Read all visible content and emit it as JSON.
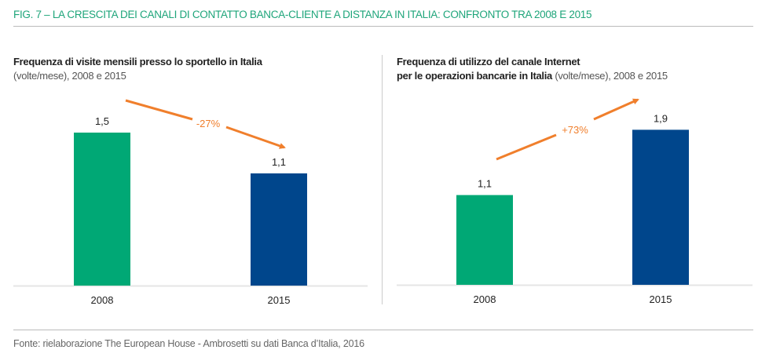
{
  "title": "FIG. 7 – LA CRESCITA DEI CANALI DI CONTATTO BANCA-CLIENTE A DISTANZA IN ITALIA: CONFRONTO TRA 2008 E 2015",
  "footer": "Fonte: rielaborazione The European House - Ambrosetti su dati Banca d’Italia, 2016",
  "colors": {
    "title": "#1ea57a",
    "bar_2008": "#00a875",
    "bar_2015": "#00468c",
    "arrow": "#f07f2c"
  },
  "chart_data": [
    {
      "type": "bar",
      "title_bold": "Frequenza di visite mensili presso lo sportello in Italia",
      "title_normal": "(volte/mese), 2008 e 2015",
      "categories": [
        "2008",
        "2015"
      ],
      "values": [
        1.5,
        1.1
      ],
      "labels": [
        "1,5",
        "1,1"
      ],
      "annotation": "-27%",
      "annotation_direction": "down"
    },
    {
      "type": "bar",
      "title_bold_1": "Frequenza di utilizzo del canale Internet",
      "title_bold_2": "per le operazioni bancarie in Italia",
      "title_normal": "(volte/mese), 2008 e 2015",
      "categories": [
        "2008",
        "2015"
      ],
      "values": [
        1.1,
        1.9
      ],
      "labels": [
        "1,1",
        "1,9"
      ],
      "annotation": "+73%",
      "annotation_direction": "up"
    }
  ]
}
